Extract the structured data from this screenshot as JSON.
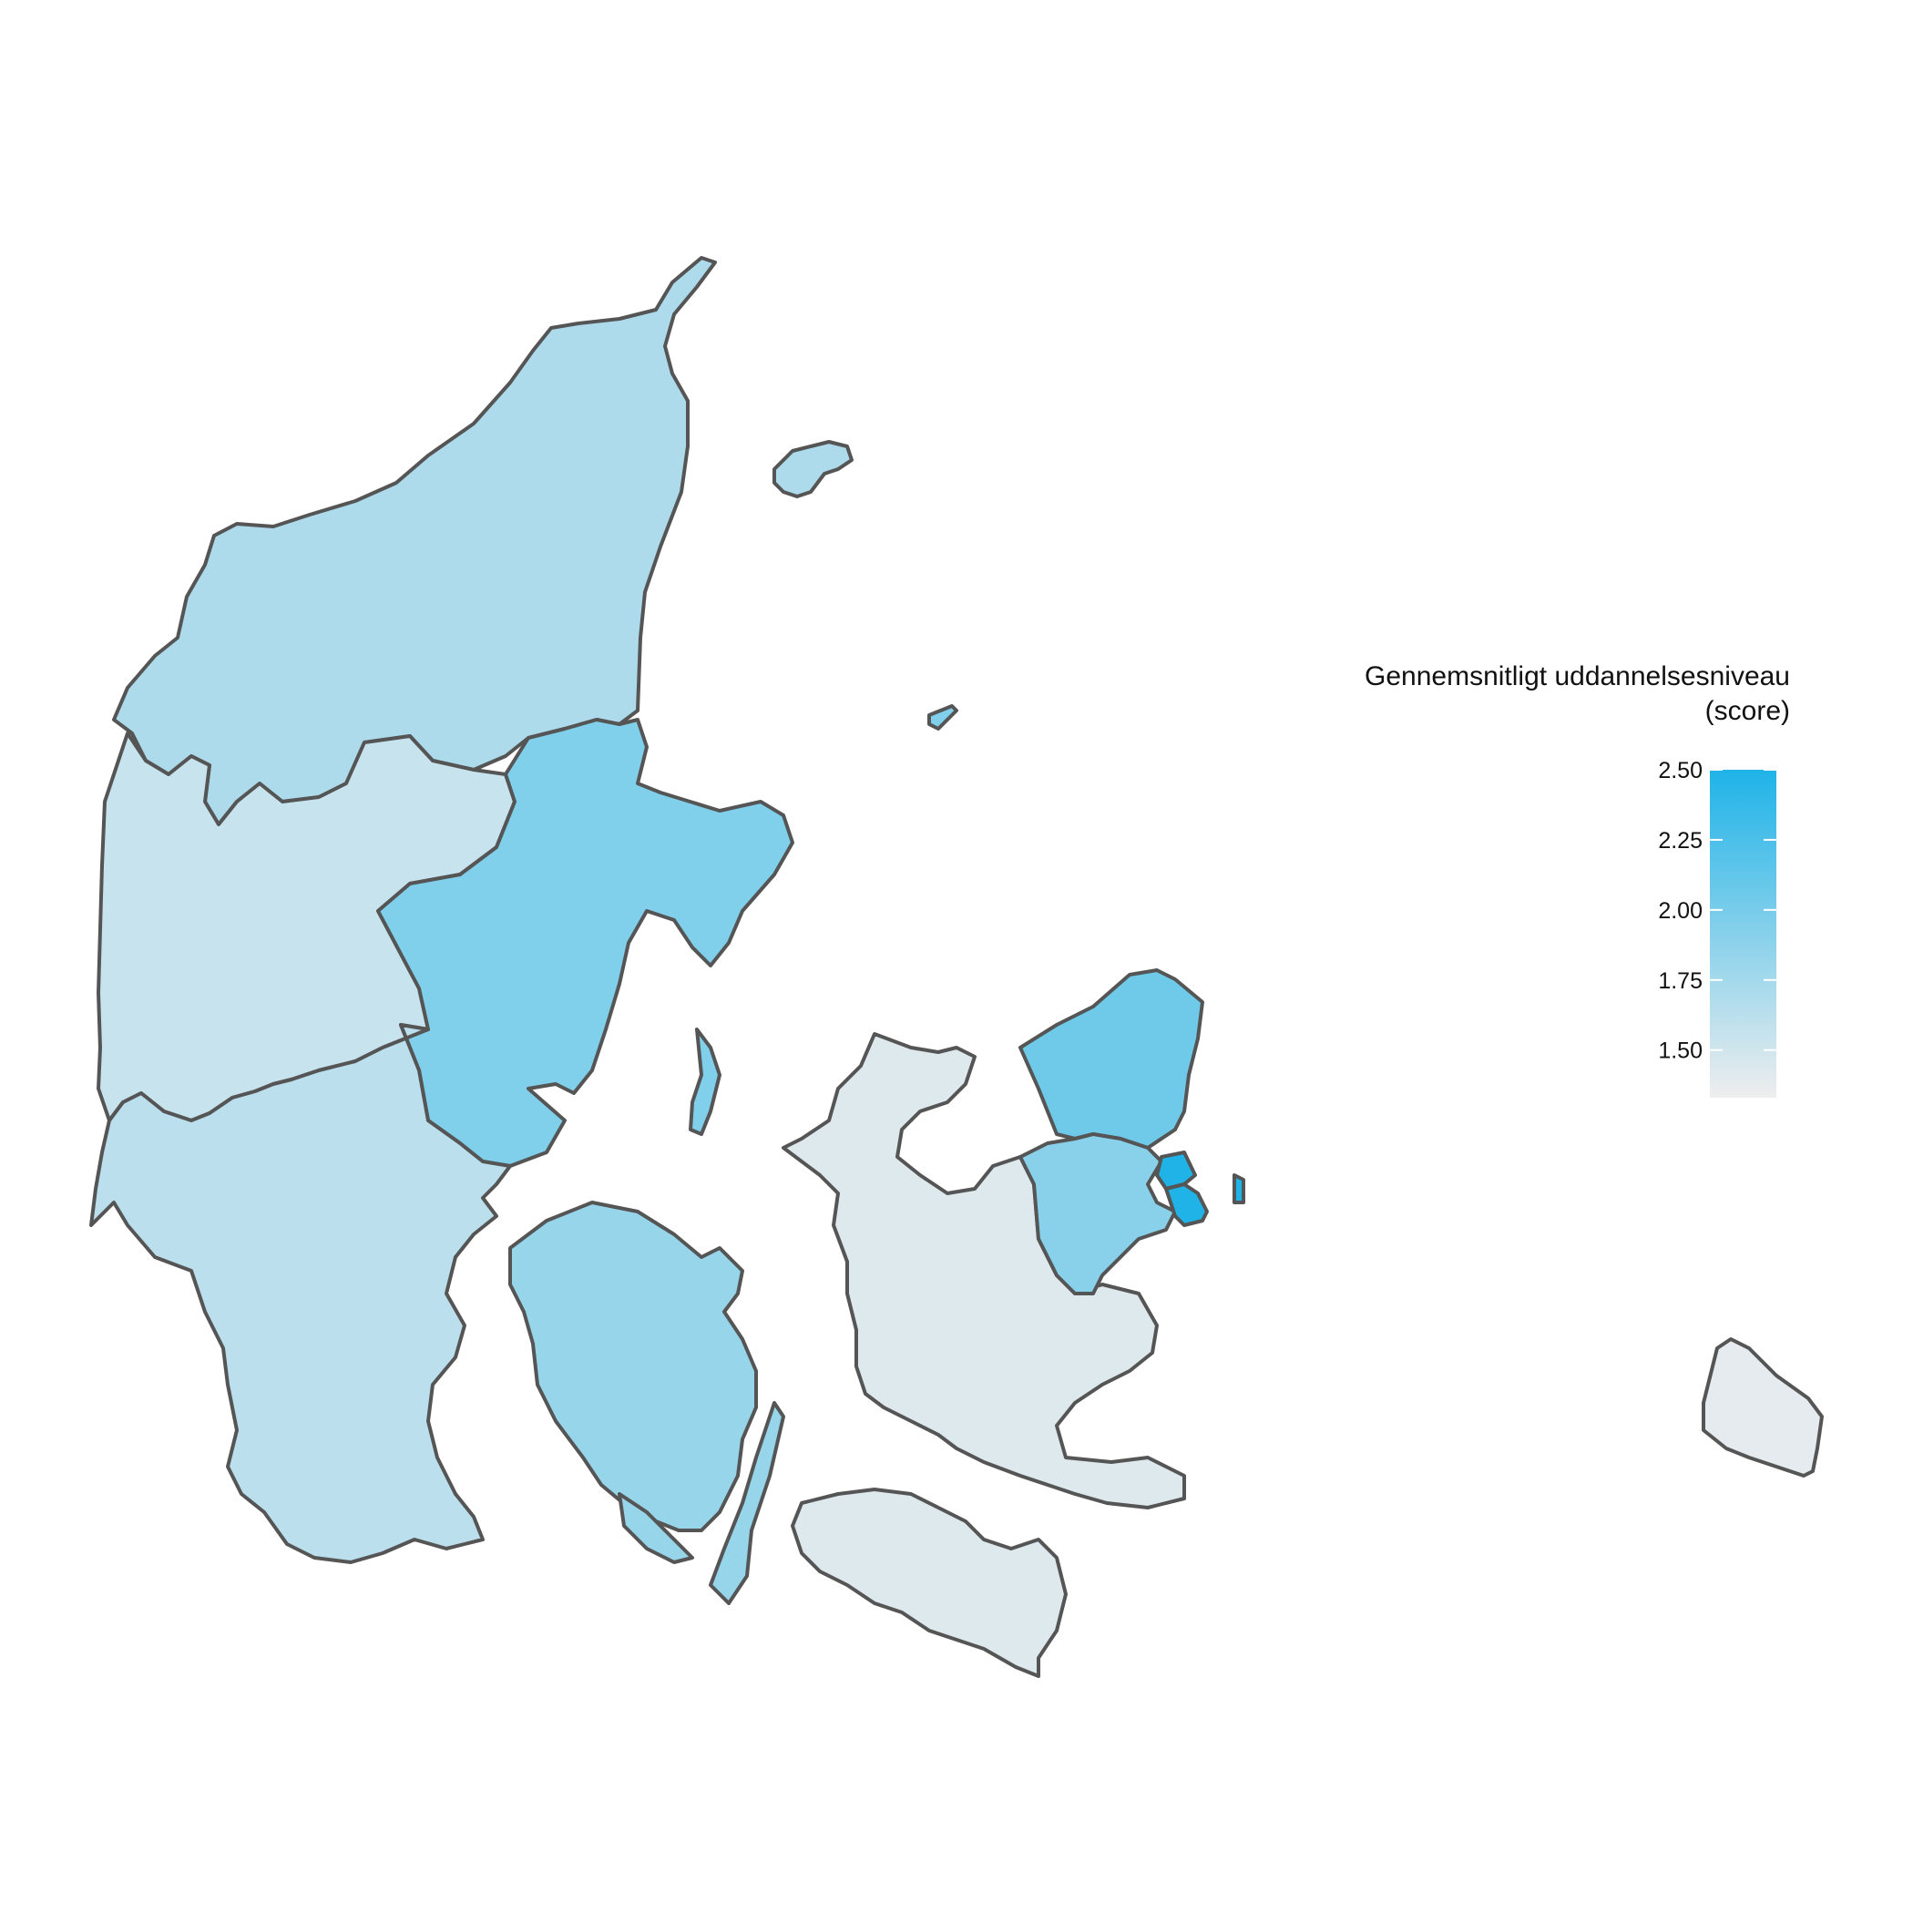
{
  "legend": {
    "title_line1": "Gennemsnitligt uddannelsesniveau",
    "title_line2": "(score)",
    "scale": {
      "min": 1.33,
      "max": 2.5,
      "color_low": "#eeeeee",
      "color_high": "#1fb3e8"
    },
    "ticks": [
      {
        "value": 2.5,
        "label": "2.50"
      },
      {
        "value": 2.25,
        "label": "2.25"
      },
      {
        "value": 2.0,
        "label": "2.00"
      },
      {
        "value": 1.75,
        "label": "1.75"
      },
      {
        "value": 1.5,
        "label": "1.50"
      }
    ]
  },
  "regions": [
    {
      "id": "nordjylland",
      "score": 1.7
    },
    {
      "id": "west-jylland",
      "score": 1.55
    },
    {
      "id": "oestjylland",
      "score": 1.95
    },
    {
      "id": "sydjylland",
      "score": 1.62
    },
    {
      "id": "fyn",
      "score": 1.82
    },
    {
      "id": "vestsjaelland",
      "score": 1.42
    },
    {
      "id": "nordsjaelland",
      "score": 2.05
    },
    {
      "id": "oestsjaelland",
      "score": 1.9
    },
    {
      "id": "koebenhavn",
      "score": 2.5
    },
    {
      "id": "bornholm",
      "score": 1.38
    }
  ],
  "chart_data": {
    "type": "heatmap",
    "title": "",
    "legend_title": "Gennemsnitligt uddannelsesniveau (score)",
    "legend_range": [
      1.33,
      2.5
    ],
    "legend_ticks": [
      1.5,
      1.75,
      2.0,
      2.25,
      2.5
    ],
    "legend_placement": "right",
    "regions": [
      {
        "id": "nordjylland",
        "value": 1.7
      },
      {
        "id": "west-jylland",
        "value": 1.55
      },
      {
        "id": "oestjylland",
        "value": 1.95
      },
      {
        "id": "sydjylland",
        "value": 1.62
      },
      {
        "id": "fyn",
        "value": 1.82
      },
      {
        "id": "vestsjaelland",
        "value": 1.42
      },
      {
        "id": "nordsjaelland",
        "value": 2.05
      },
      {
        "id": "oestsjaelland",
        "value": 1.9
      },
      {
        "id": "koebenhavn",
        "value": 2.5
      },
      {
        "id": "bornholm",
        "value": 1.38
      }
    ]
  }
}
